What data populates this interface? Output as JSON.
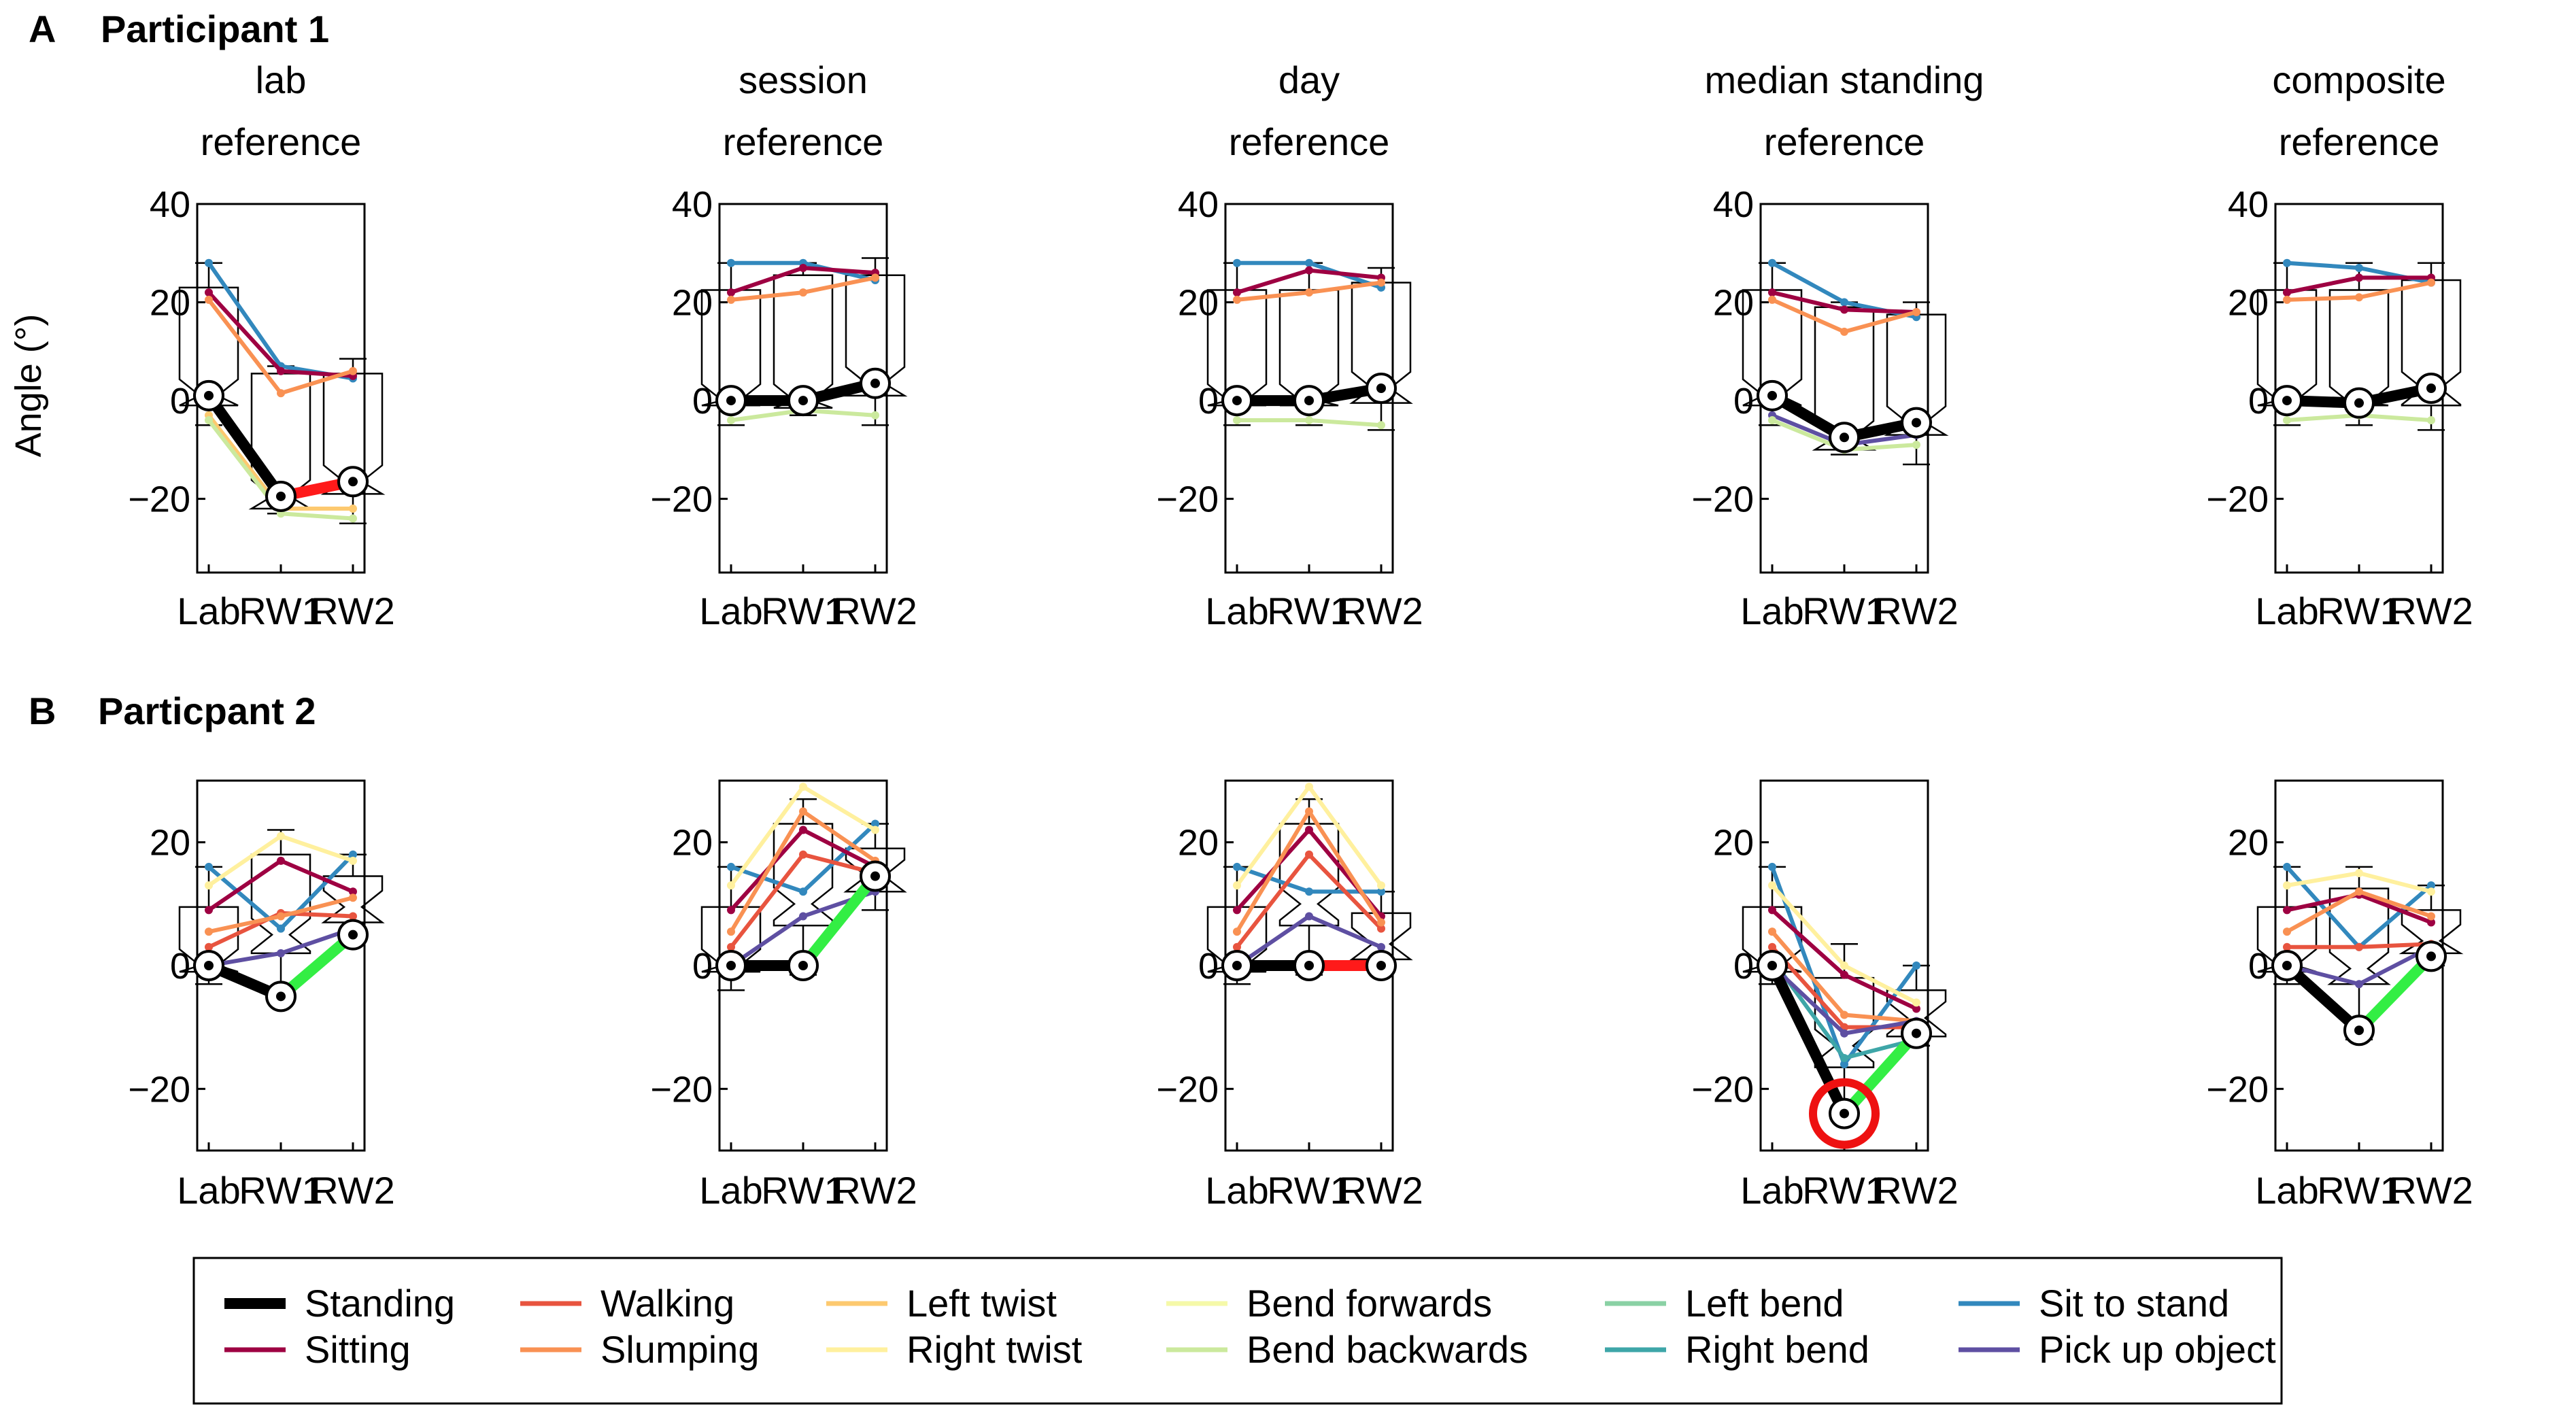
{
  "figure": {
    "panels": [
      {
        "letter": "A",
        "title": "Participant 1"
      },
      {
        "letter": "B",
        "title": "Particpant 2"
      }
    ],
    "ylabel": "Angle (°)",
    "column_titles": [
      [
        "lab",
        "reference"
      ],
      [
        "session",
        "reference"
      ],
      [
        "day",
        "reference"
      ],
      [
        "median standing",
        "reference"
      ],
      [
        "composite",
        "reference"
      ]
    ],
    "x_categories": [
      "Lab",
      "RW1",
      "RW2"
    ]
  },
  "series_colors": {
    "Standing": "#000000",
    "Sitting": "#9e0142",
    "Walking": "#e8543f",
    "Slumping": "#f99153",
    "Left twist": "#fdc96f",
    "Right twist": "#fff09e",
    "Bend forwards": "#f5f9a8",
    "Bend backwards": "#cbe99d",
    "Left bend": "#8ad1a4",
    "Right bend": "#3ea6a8",
    "Sit to stand": "#3288bd",
    "Pick up object": "#5e4fa2"
  },
  "highlight_colors": {
    "worse": "#ff1a1a",
    "better": "#33ee44",
    "outlier_circle": "#ee1111"
  },
  "legend": {
    "entries": [
      "Standing",
      "Sitting",
      "Walking",
      "Slumping",
      "Left twist",
      "Right twist",
      "Bend forwards",
      "Bend backwards",
      "Left bend",
      "Right bend",
      "Sit to stand",
      "Pick up object"
    ]
  },
  "chart_data": [
    {
      "type": "line",
      "participant": "Participant 1",
      "reference": "lab reference",
      "categories": [
        "Lab",
        "RW1",
        "RW2"
      ],
      "ylim": [
        -35,
        40
      ],
      "yticks": [
        -20,
        0,
        20,
        40
      ],
      "standing": [
        1,
        -19.5,
        -16.5
      ],
      "segment_highlight": [
        "none",
        "worse"
      ],
      "boxes": [
        {
          "q1": -1,
          "med": 1,
          "q3": 23,
          "lo": -5,
          "hi": 28
        },
        {
          "q1": -22,
          "med": -19.5,
          "q3": 5.5,
          "lo": -23,
          "hi": 7
        },
        {
          "q1": -19,
          "med": -16.5,
          "q3": 5.5,
          "lo": -25,
          "hi": 8.5
        }
      ],
      "series": [
        {
          "name": "Sit to stand",
          "values": [
            28,
            7,
            4.5
          ]
        },
        {
          "name": "Sitting",
          "values": [
            22,
            6,
            5
          ]
        },
        {
          "name": "Slumping",
          "values": [
            20.5,
            1.5,
            6
          ]
        },
        {
          "name": "Left twist",
          "values": [
            -3,
            -22,
            -22
          ]
        },
        {
          "name": "Bend backwards",
          "values": [
            -4,
            -23,
            -24
          ]
        }
      ]
    },
    {
      "type": "line",
      "participant": "Participant 1",
      "reference": "session reference",
      "categories": [
        "Lab",
        "RW1",
        "RW2"
      ],
      "ylim": [
        -35,
        40
      ],
      "yticks": [
        -20,
        0,
        20,
        40
      ],
      "standing": [
        0,
        0,
        3.5
      ],
      "segment_highlight": [
        "none",
        "none"
      ],
      "boxes": [
        {
          "q1": -1,
          "med": 0,
          "q3": 22.5,
          "lo": -5,
          "hi": 28
        },
        {
          "q1": -1.5,
          "med": 0,
          "q3": 25.5,
          "lo": -3,
          "hi": 28
        },
        {
          "q1": 1,
          "med": 3.5,
          "q3": 25.5,
          "lo": -5,
          "hi": 29
        }
      ],
      "series": [
        {
          "name": "Sit to stand",
          "values": [
            28,
            28,
            24.5
          ]
        },
        {
          "name": "Sitting",
          "values": [
            22,
            27,
            26
          ]
        },
        {
          "name": "Slumping",
          "values": [
            20.5,
            22,
            25
          ]
        },
        {
          "name": "Bend backwards",
          "values": [
            -4,
            -2,
            -3
          ]
        }
      ]
    },
    {
      "type": "line",
      "participant": "Participant 1",
      "reference": "day reference",
      "categories": [
        "Lab",
        "RW1",
        "RW2"
      ],
      "ylim": [
        -35,
        40
      ],
      "yticks": [
        -20,
        0,
        20,
        40
      ],
      "standing": [
        0,
        0,
        2.5
      ],
      "segment_highlight": [
        "none",
        "none"
      ],
      "boxes": [
        {
          "q1": -1,
          "med": 0,
          "q3": 22.5,
          "lo": -5,
          "hi": 28
        },
        {
          "q1": -1,
          "med": 0,
          "q3": 22.5,
          "lo": -5,
          "hi": 28
        },
        {
          "q1": -0.5,
          "med": 2.5,
          "q3": 24,
          "lo": -6,
          "hi": 27
        }
      ],
      "series": [
        {
          "name": "Sit to stand",
          "values": [
            28,
            28,
            23
          ]
        },
        {
          "name": "Sitting",
          "values": [
            22,
            26.5,
            25
          ]
        },
        {
          "name": "Slumping",
          "values": [
            20.5,
            22,
            24
          ]
        },
        {
          "name": "Bend backwards",
          "values": [
            -4,
            -4,
            -5
          ]
        }
      ]
    },
    {
      "type": "line",
      "participant": "Participant 1",
      "reference": "median standing reference",
      "categories": [
        "Lab",
        "RW1",
        "RW2"
      ],
      "ylim": [
        -35,
        40
      ],
      "yticks": [
        -20,
        0,
        20,
        40
      ],
      "standing": [
        1,
        -7.5,
        -4.5
      ],
      "segment_highlight": [
        "none",
        "none"
      ],
      "boxes": [
        {
          "q1": -1,
          "med": 1,
          "q3": 22.5,
          "lo": -5,
          "hi": 28
        },
        {
          "q1": -10,
          "med": -7.5,
          "q3": 19,
          "lo": -11,
          "hi": 20
        },
        {
          "q1": -7,
          "med": -4.5,
          "q3": 17.5,
          "lo": -13,
          "hi": 20
        }
      ],
      "series": [
        {
          "name": "Sit to stand",
          "values": [
            28,
            20,
            17
          ]
        },
        {
          "name": "Sitting",
          "values": [
            22,
            18.5,
            18
          ]
        },
        {
          "name": "Slumping",
          "values": [
            20.5,
            14,
            18
          ]
        },
        {
          "name": "Pick up object",
          "values": [
            -3,
            -9,
            -7
          ]
        },
        {
          "name": "Bend backwards",
          "values": [
            -4,
            -10,
            -9
          ]
        }
      ]
    },
    {
      "type": "line",
      "participant": "Participant 1",
      "reference": "composite reference",
      "categories": [
        "Lab",
        "RW1",
        "RW2"
      ],
      "ylim": [
        -35,
        40
      ],
      "yticks": [
        -20,
        0,
        20,
        40
      ],
      "standing": [
        0,
        -0.5,
        2.5
      ],
      "segment_highlight": [
        "none",
        "none"
      ],
      "boxes": [
        {
          "q1": -1,
          "med": 0,
          "q3": 22.5,
          "lo": -5,
          "hi": 28
        },
        {
          "q1": -1,
          "med": -0.5,
          "q3": 22.5,
          "lo": -5,
          "hi": 28
        },
        {
          "q1": -1,
          "med": 2.5,
          "q3": 24.5,
          "lo": -6,
          "hi": 28
        }
      ],
      "series": [
        {
          "name": "Sit to stand",
          "values": [
            28,
            27,
            24
          ]
        },
        {
          "name": "Sitting",
          "values": [
            22,
            25,
            25
          ]
        },
        {
          "name": "Slumping",
          "values": [
            20.5,
            21,
            24
          ]
        },
        {
          "name": "Bend backwards",
          "values": [
            -4,
            -3,
            -4
          ]
        }
      ]
    },
    {
      "type": "line",
      "participant": "Particpant 2",
      "reference": "lab reference",
      "categories": [
        "Lab",
        "RW1",
        "RW2"
      ],
      "ylim": [
        -30,
        30
      ],
      "yticks": [
        -20,
        0,
        20
      ],
      "standing": [
        0,
        -5,
        5
      ],
      "segment_highlight": [
        "none",
        "better"
      ],
      "boxes": [
        {
          "q1": -1,
          "med": 0,
          "q3": 9.5,
          "lo": -3,
          "hi": 16
        },
        {
          "q1": 2,
          "med": 5,
          "q3": 18,
          "lo": -6,
          "hi": 22
        },
        {
          "q1": 7,
          "med": 9.5,
          "q3": 14.5,
          "lo": 5,
          "hi": 18
        }
      ],
      "series": [
        {
          "name": "Sit to stand",
          "values": [
            16,
            6,
            18
          ]
        },
        {
          "name": "Sitting",
          "values": [
            9,
            17,
            12
          ]
        },
        {
          "name": "Walking",
          "values": [
            3,
            8.5,
            8
          ]
        },
        {
          "name": "Slumping",
          "values": [
            5.5,
            8,
            11
          ]
        },
        {
          "name": "Right twist",
          "values": [
            13,
            21,
            17
          ]
        },
        {
          "name": "Pick up object",
          "values": [
            0,
            2,
            6
          ]
        }
      ]
    },
    {
      "type": "line",
      "participant": "Particpant 2",
      "reference": "session reference",
      "categories": [
        "Lab",
        "RW1",
        "RW2"
      ],
      "ylim": [
        -30,
        30
      ],
      "yticks": [
        -20,
        0,
        20
      ],
      "standing": [
        0,
        0,
        14.5
      ],
      "segment_highlight": [
        "none",
        "better"
      ],
      "boxes": [
        {
          "q1": -1,
          "med": 0,
          "q3": 9.5,
          "lo": -4,
          "hi": 16
        },
        {
          "q1": 6.5,
          "med": 10,
          "q3": 23,
          "lo": -1.5,
          "hi": 27
        },
        {
          "q1": 12,
          "med": 14.5,
          "q3": 19,
          "lo": 9,
          "hi": 23
        }
      ],
      "series": [
        {
          "name": "Sit to stand",
          "values": [
            16,
            12,
            23
          ]
        },
        {
          "name": "Sitting",
          "values": [
            9,
            22,
            16
          ]
        },
        {
          "name": "Walking",
          "values": [
            3,
            18,
            15
          ]
        },
        {
          "name": "Slumping",
          "values": [
            5.5,
            25,
            17
          ]
        },
        {
          "name": "Right twist",
          "values": [
            13,
            29,
            22
          ]
        },
        {
          "name": "Pick up object",
          "values": [
            0,
            8,
            12
          ]
        }
      ]
    },
    {
      "type": "line",
      "participant": "Particpant 2",
      "reference": "day reference",
      "categories": [
        "Lab",
        "RW1",
        "RW2"
      ],
      "ylim": [
        -30,
        30
      ],
      "yticks": [
        -20,
        0,
        20
      ],
      "standing": [
        0,
        0,
        0
      ],
      "segment_highlight": [
        "none",
        "worse"
      ],
      "boxes": [
        {
          "q1": -1,
          "med": 0,
          "q3": 9.5,
          "lo": -3,
          "hi": 16
        },
        {
          "q1": 6.5,
          "med": 10,
          "q3": 23,
          "lo": -1.5,
          "hi": 27
        },
        {
          "q1": 1,
          "med": 3.5,
          "q3": 8.5,
          "lo": -1,
          "hi": 12
        }
      ],
      "series": [
        {
          "name": "Sit to stand",
          "values": [
            16,
            12,
            12
          ]
        },
        {
          "name": "Sitting",
          "values": [
            9,
            22,
            8
          ]
        },
        {
          "name": "Walking",
          "values": [
            3,
            18,
            6
          ]
        },
        {
          "name": "Slumping",
          "values": [
            5.5,
            25,
            7
          ]
        },
        {
          "name": "Right twist",
          "values": [
            13,
            29,
            13
          ]
        },
        {
          "name": "Pick up object",
          "values": [
            0,
            8,
            3
          ]
        }
      ]
    },
    {
      "type": "line",
      "participant": "Particpant 2",
      "reference": "median standing reference",
      "categories": [
        "Lab",
        "RW1",
        "RW2"
      ],
      "ylim": [
        -30,
        30
      ],
      "yticks": [
        -20,
        0,
        20
      ],
      "standing": [
        0,
        -24,
        -11
      ],
      "segment_highlight": [
        "none",
        "better"
      ],
      "boxes": [
        {
          "q1": -1,
          "med": 0,
          "q3": 9.5,
          "lo": -3,
          "hi": 16
        },
        {
          "q1": -16.5,
          "med": -13,
          "q3": -2,
          "lo": -25,
          "hi": 3.5
        },
        {
          "q1": -11.5,
          "med": -8.5,
          "q3": -4,
          "lo": -13,
          "hi": 0
        }
      ],
      "series": [
        {
          "name": "Sit to stand",
          "values": [
            16,
            -16,
            0
          ]
        },
        {
          "name": "Sitting",
          "values": [
            9,
            -1.5,
            -7
          ]
        },
        {
          "name": "Walking",
          "values": [
            3,
            -10,
            -10
          ]
        },
        {
          "name": "Slumping",
          "values": [
            5.5,
            -8,
            -9
          ]
        },
        {
          "name": "Right twist",
          "values": [
            13,
            0,
            -6
          ]
        },
        {
          "name": "Right bend",
          "values": [
            1,
            -15,
            -12
          ]
        },
        {
          "name": "Pick up object",
          "values": [
            0,
            -11,
            -9
          ]
        }
      ],
      "outlier_marker": {
        "category": "RW1",
        "value": -24
      }
    },
    {
      "type": "line",
      "participant": "Particpant 2",
      "reference": "composite reference",
      "categories": [
        "Lab",
        "RW1",
        "RW2"
      ],
      "ylim": [
        -30,
        30
      ],
      "yticks": [
        -20,
        0,
        20
      ],
      "standing": [
        0,
        -10.5,
        1.5
      ],
      "segment_highlight": [
        "none",
        "better"
      ],
      "boxes": [
        {
          "q1": -1,
          "med": 0,
          "q3": 9.5,
          "lo": -3,
          "hi": 16
        },
        {
          "q1": -3,
          "med": -0.5,
          "q3": 12.5,
          "lo": -12,
          "hi": 16
        },
        {
          "q1": 2,
          "med": 4,
          "q3": 9,
          "lo": 0,
          "hi": 13
        }
      ],
      "series": [
        {
          "name": "Sit to stand",
          "values": [
            16,
            3,
            13
          ]
        },
        {
          "name": "Sitting",
          "values": [
            9,
            11.5,
            7
          ]
        },
        {
          "name": "Walking",
          "values": [
            3,
            3,
            3.5
          ]
        },
        {
          "name": "Slumping",
          "values": [
            5.5,
            12,
            8
          ]
        },
        {
          "name": "Right twist",
          "values": [
            13,
            15,
            12
          ]
        },
        {
          "name": "Pick up object",
          "values": [
            0,
            -3,
            3
          ]
        }
      ]
    }
  ]
}
